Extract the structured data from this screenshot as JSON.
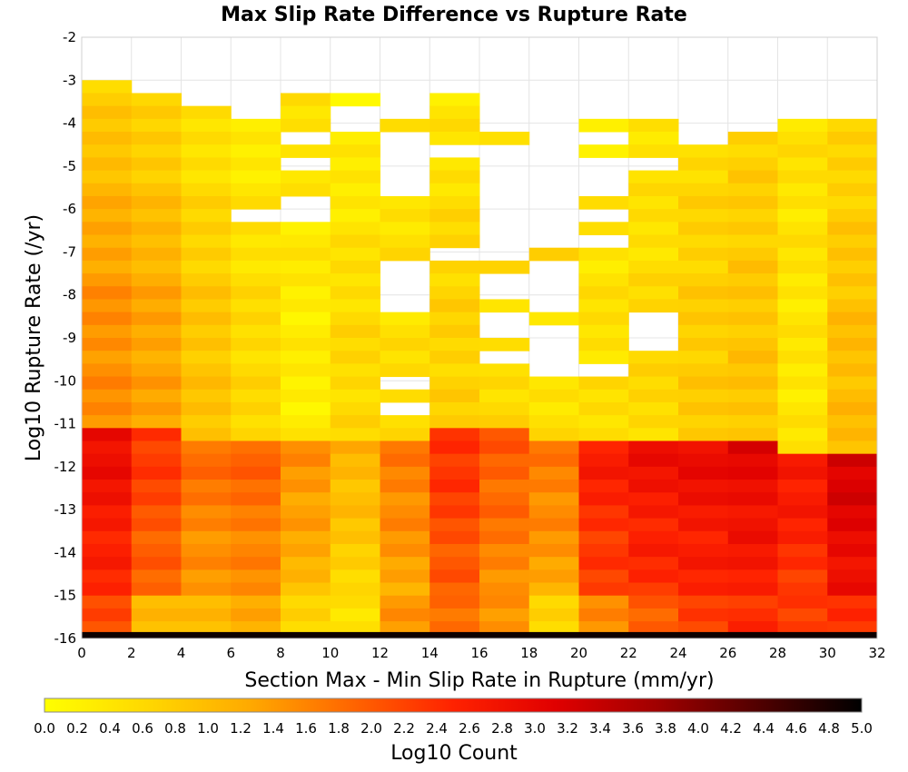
{
  "chart_data": {
    "type": "heatmap",
    "title": "Max Slip Rate Difference vs Rupture Rate",
    "xlabel": "Section Max - Min Slip Rate in Rupture (mm/yr)",
    "ylabel": "Log10 Rupture Rate (/yr)",
    "xlim": [
      0,
      32
    ],
    "ylim": [
      -16,
      -2
    ],
    "x_ticks": [
      "0",
      "2",
      "4",
      "6",
      "8",
      "10",
      "12",
      "14",
      "16",
      "18",
      "20",
      "22",
      "24",
      "26",
      "28",
      "30",
      "32"
    ],
    "y_ticks": [
      "-2",
      "-3",
      "-4",
      "-5",
      "-6",
      "-7",
      "-8",
      "-9",
      "-10",
      "-11",
      "-12",
      "-13",
      "-14",
      "-15",
      "-16"
    ],
    "grid": true,
    "x_bin_width": 2,
    "y_bin_width": 0.3,
    "colorbar": {
      "label": "Log10 Count",
      "range": [
        0,
        5
      ],
      "ticks": [
        "0.0",
        "0.2",
        "0.4",
        "0.6",
        "0.8",
        "1.0",
        "1.2",
        "1.4",
        "1.6",
        "1.8",
        "2.0",
        "2.2",
        "2.4",
        "2.6",
        "2.8",
        "3.0",
        "3.2",
        "3.4",
        "3.6",
        "3.8",
        "4.0",
        "4.2",
        "4.4",
        "4.6",
        "4.8",
        "5.0"
      ],
      "colors": [
        "#ffff00",
        "#ffd800",
        "#ffaa00",
        "#ff6600",
        "#ff2200",
        "#e00000",
        "#a00000",
        "#500000",
        "#000000"
      ]
    },
    "columns": [
      {
        "x": 1,
        "y_top": -3.0,
        "top_value": 0.7,
        "gaps": [],
        "mid_value": 1.5,
        "low_value": 3.0,
        "low_top": -11.0,
        "bottom_value": 2.2
      },
      {
        "x": 3,
        "y_top": -3.3,
        "top_value": 0.6,
        "gaps": [],
        "mid_value": 1.3,
        "low_value": 2.4,
        "low_top": -11.0,
        "bottom_value": 1.1
      },
      {
        "x": 5,
        "y_top": -3.6,
        "top_value": 0.4,
        "gaps": [],
        "mid_value": 0.9,
        "low_value": 1.9,
        "low_top": -11.3,
        "bottom_value": 1.1
      },
      {
        "x": 7,
        "y_top": -3.9,
        "top_value": 0.3,
        "gaps": [
          [
            -6.3,
            -6.0
          ]
        ],
        "mid_value": 0.6,
        "low_value": 2.0,
        "low_top": -11.3,
        "bottom_value": 1.3
      },
      {
        "x": 9,
        "y_top": -3.3,
        "top_value": 0.5,
        "gaps": [
          [
            -4.5,
            -4.2
          ],
          [
            -5.1,
            -4.8
          ],
          [
            -6.3,
            -5.7
          ]
        ],
        "mid_value": 0.3,
        "low_value": 1.6,
        "low_top": -11.3,
        "bottom_value": 0.6
      },
      {
        "x": 11,
        "y_top": -3.3,
        "top_value": 0.2,
        "gaps": [
          [
            -4.2,
            -3.6
          ]
        ],
        "mid_value": 0.6,
        "low_value": 1.2,
        "low_top": -11.3,
        "bottom_value": 0.4
      },
      {
        "x": 13,
        "y_top": -3.9,
        "top_value": 0.5,
        "gaps": [
          [
            -5.7,
            -4.2
          ],
          [
            -8.4,
            -7.2
          ],
          [
            -10.2,
            -9.9
          ],
          [
            -10.8,
            -10.5
          ]
        ],
        "mid_value": 0.5,
        "low_value": 1.8,
        "low_top": -11.3,
        "bottom_value": 1.4
      },
      {
        "x": 15,
        "y_top": -3.3,
        "top_value": 0.4,
        "gaps": [
          [
            -4.8,
            -4.5
          ],
          [
            -7.2,
            -6.9
          ]
        ],
        "mid_value": 0.7,
        "low_value": 2.5,
        "low_top": -11.0,
        "bottom_value": 1.8
      },
      {
        "x": 17,
        "y_top": -4.2,
        "top_value": 0.5,
        "gaps": [
          [
            -7.2,
            -4.5
          ],
          [
            -8.1,
            -7.5
          ],
          [
            -9.0,
            -8.4
          ],
          [
            -9.6,
            -9.3
          ]
        ],
        "mid_value": 0.6,
        "low_value": 2.1,
        "low_top": -11.0,
        "bottom_value": 1.4
      },
      {
        "x": 19,
        "y_top": -6.9,
        "top_value": 0.6,
        "gaps": [
          [
            -8.4,
            -7.2
          ],
          [
            -9.9,
            -8.7
          ],
          [
            -10.2,
            -10.1
          ]
        ],
        "mid_value": 0.5,
        "low_value": 1.8,
        "low_top": -11.3,
        "bottom_value": 0.6
      },
      {
        "x": 21,
        "y_top": -3.9,
        "top_value": 0.3,
        "gaps": [
          [
            -4.5,
            -4.2
          ],
          [
            -5.7,
            -4.8
          ],
          [
            -6.3,
            -6.0
          ],
          [
            -6.9,
            -6.6
          ],
          [
            -9.9,
            -9.6
          ]
        ],
        "mid_value": 0.5,
        "low_value": 2.7,
        "low_top": -11.3,
        "bottom_value": 1.6
      },
      {
        "x": 23,
        "y_top": -3.9,
        "top_value": 0.4,
        "gaps": [
          [
            -5.1,
            -4.8
          ],
          [
            -9.3,
            -8.4
          ]
        ],
        "mid_value": 0.6,
        "low_value": 2.9,
        "low_top": -11.3,
        "bottom_value": 2.0
      },
      {
        "x": 25,
        "y_top": -4.5,
        "top_value": 0.6,
        "gaps": [],
        "mid_value": 0.8,
        "low_value": 3.0,
        "low_top": -11.3,
        "bottom_value": 2.3
      },
      {
        "x": 27,
        "y_top": -4.2,
        "top_value": 0.7,
        "gaps": [],
        "mid_value": 0.9,
        "low_value": 3.1,
        "low_top": -11.3,
        "bottom_value": 2.4
      },
      {
        "x": 29,
        "y_top": -3.9,
        "top_value": 0.5,
        "gaps": [],
        "mid_value": 0.4,
        "low_value": 2.8,
        "low_top": -11.6,
        "bottom_value": 2.2
      },
      {
        "x": 31,
        "y_top": -3.9,
        "top_value": 0.6,
        "gaps": [],
        "mid_value": 1.0,
        "low_value": 3.3,
        "low_top": -11.6,
        "bottom_value": 2.4
      }
    ],
    "bottom_row": {
      "y_range": [
        -16,
        -15.85
      ],
      "value": 4.9
    }
  }
}
